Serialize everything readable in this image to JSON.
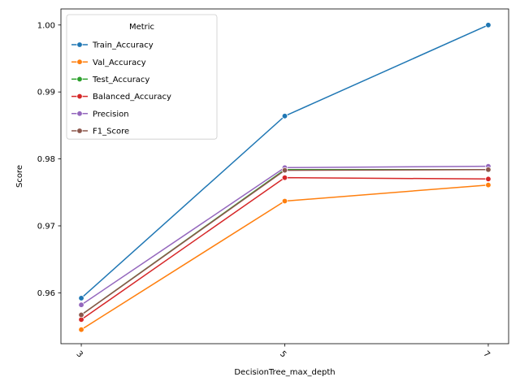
{
  "chart_data": {
    "type": "line",
    "title": "",
    "xlabel": "DecisionTree_max_depth",
    "ylabel": "Score",
    "x": [
      3,
      5,
      7
    ],
    "x_tick_labels": [
      "3",
      "5",
      "7"
    ],
    "x_tick_rotation_deg": 45,
    "ylim": [
      0.9524,
      1.0024
    ],
    "y_ticks": [
      0.96,
      0.97,
      0.98,
      0.99,
      1.0
    ],
    "y_tick_labels": [
      "0.96",
      "0.97",
      "0.98",
      "0.99",
      "1.00"
    ],
    "grid": false,
    "legend": {
      "title": "Metric",
      "placement": "top-left"
    },
    "series": [
      {
        "name": "Train_Accuracy",
        "color": "#1f77b4",
        "values": [
          0.9592,
          0.9864,
          1.0
        ]
      },
      {
        "name": "Val_Accuracy",
        "color": "#ff7f0e",
        "values": [
          0.9545,
          0.9737,
          0.9761
        ]
      },
      {
        "name": "Test_Accuracy",
        "color": "#2ca02c",
        "values": [
          0.9567,
          0.9784,
          0.9784
        ]
      },
      {
        "name": "Balanced_Accuracy",
        "color": "#d62728",
        "values": [
          0.956,
          0.9772,
          0.977
        ]
      },
      {
        "name": "Precision",
        "color": "#9467bd",
        "values": [
          0.9582,
          0.9787,
          0.9789
        ]
      },
      {
        "name": "F1_Score",
        "color": "#8c564b",
        "values": [
          0.9567,
          0.9783,
          0.9784
        ]
      }
    ]
  }
}
